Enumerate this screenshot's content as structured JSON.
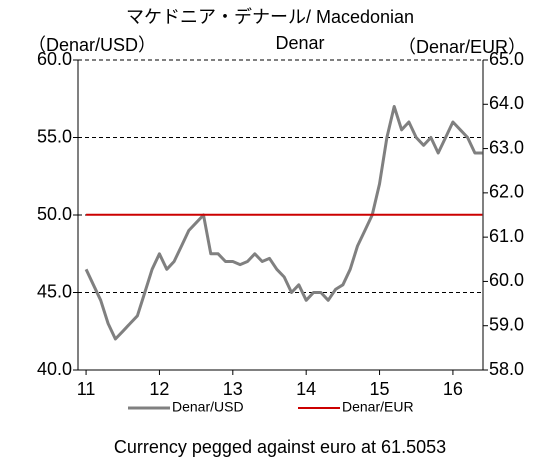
{
  "chart_data": {
    "type": "line",
    "title": [
      "マケドニア・デナール/ Macedonian",
      "Denar"
    ],
    "y_label": "（Denar/USD）",
    "y2_label": "（Denar/EUR）",
    "caption": "Currency pegged against euro at 61.5053",
    "x": [
      11.0,
      11.1,
      11.2,
      11.3,
      11.4,
      11.5,
      11.6,
      11.7,
      11.8,
      11.9,
      12.0,
      12.1,
      12.2,
      12.3,
      12.4,
      12.5,
      12.6,
      12.7,
      12.8,
      12.9,
      13.0,
      13.1,
      13.2,
      13.3,
      13.4,
      13.5,
      13.6,
      13.7,
      13.8,
      13.9,
      14.0,
      14.1,
      14.2,
      14.3,
      14.4,
      14.5,
      14.6,
      14.7,
      14.8,
      14.9,
      15.0,
      15.1,
      15.2,
      15.3,
      15.4,
      15.5,
      15.6,
      15.7,
      15.8,
      15.9,
      16.0,
      16.1,
      16.2,
      16.3,
      16.4
    ],
    "series": [
      {
        "name": "Denar/USD",
        "color": "#808080",
        "axis": "y",
        "values": [
          46.5,
          45.5,
          44.5,
          43.0,
          42.0,
          42.5,
          43.0,
          43.5,
          45.0,
          46.5,
          47.5,
          46.5,
          47.0,
          48.0,
          49.0,
          49.5,
          50.0,
          47.5,
          47.5,
          47.0,
          47.0,
          46.8,
          47.0,
          47.5,
          47.0,
          47.2,
          46.5,
          46.0,
          45.0,
          45.5,
          44.5,
          45.0,
          45.0,
          44.5,
          45.2,
          45.5,
          46.5,
          48.0,
          49.0,
          50.0,
          52.0,
          55.0,
          57.0,
          55.5,
          56.0,
          55.0,
          54.5,
          55.0,
          54.0,
          55.0,
          56.0,
          55.5,
          55.0,
          54.0,
          54.0
        ]
      },
      {
        "name": "Denar/EUR",
        "color": "#cc0000",
        "axis": "y2",
        "values": [
          61.5053,
          61.5053,
          61.5053,
          61.5053,
          61.5053,
          61.5053,
          61.5053,
          61.5053,
          61.5053,
          61.5053,
          61.5053,
          61.5053,
          61.5053,
          61.5053,
          61.5053,
          61.5053,
          61.5053,
          61.5053,
          61.5053,
          61.5053,
          61.5053,
          61.5053,
          61.5053,
          61.5053,
          61.5053,
          61.5053,
          61.5053,
          61.5053,
          61.5053,
          61.5053,
          61.5053,
          61.5053,
          61.5053,
          61.5053,
          61.5053,
          61.5053,
          61.5053,
          61.5053,
          61.5053,
          61.5053,
          61.5053,
          61.5053,
          61.5053,
          61.5053,
          61.5053,
          61.5053,
          61.5053,
          61.5053,
          61.5053,
          61.5053,
          61.5053,
          61.5053,
          61.5053,
          61.5053,
          61.5053
        ]
      }
    ],
    "xlim": [
      10.89,
      16.41
    ],
    "xticks": [
      11,
      12,
      13,
      14,
      15,
      16
    ],
    "ylim": [
      40,
      60
    ],
    "yticks": [
      {
        "value": 40,
        "label": "40.0"
      },
      {
        "value": 45,
        "label": "45.0"
      },
      {
        "value": 50,
        "label": "50.0"
      },
      {
        "value": 55,
        "label": "55.0"
      },
      {
        "value": 60,
        "label": "60.0"
      }
    ],
    "y2lim": [
      58,
      65
    ],
    "y2ticks": [
      {
        "value": 58,
        "label": "58.0"
      },
      {
        "value": 59,
        "label": "59.0"
      },
      {
        "value": 60,
        "label": "60.0"
      },
      {
        "value": 61,
        "label": "61.0"
      },
      {
        "value": 62,
        "label": "62.0"
      },
      {
        "value": 63,
        "label": "63.0"
      },
      {
        "value": 64,
        "label": "64.0"
      },
      {
        "value": 65,
        "label": "65.0"
      }
    ],
    "grid": true,
    "legend": "bottom"
  }
}
